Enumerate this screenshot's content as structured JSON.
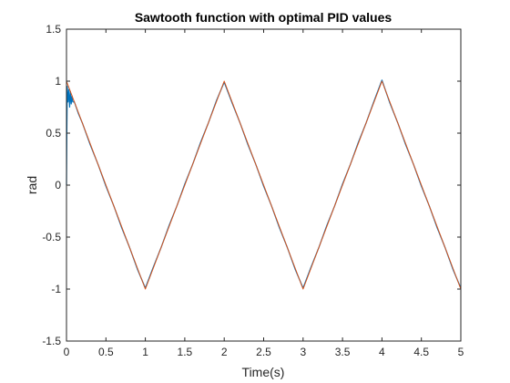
{
  "chart_data": {
    "type": "line",
    "title": "Sawtooth function with optimal PID values",
    "xlabel": "Time(s)",
    "ylabel": "rad",
    "xlim": [
      0,
      5
    ],
    "ylim": [
      -1.5,
      1.5
    ],
    "x_ticks": [
      0,
      0.5,
      1,
      1.5,
      2,
      2.5,
      3,
      3.5,
      4,
      4.5,
      5
    ],
    "x_tick_labels": [
      "0",
      "0.5",
      "1",
      "1.5",
      "2",
      "2.5",
      "3",
      "3.5",
      "4",
      "4.5",
      "5"
    ],
    "y_ticks": [
      -1.5,
      -1,
      -0.5,
      0,
      0.5,
      1,
      1.5
    ],
    "y_tick_labels": [
      "-1.5",
      "-1",
      "-0.5",
      "0",
      "0.5",
      "1",
      "1.5"
    ],
    "grid": false,
    "legend": "none",
    "series": [
      {
        "color": "#0072bd",
        "x": [
          0,
          0.005,
          0.01,
          0.02,
          0.03,
          0.04,
          0.05,
          0.06,
          0.07,
          0.08,
          0.1,
          0.15,
          0.2,
          0.3,
          0.4,
          0.5,
          0.6,
          0.7,
          0.8,
          0.9,
          1.0,
          1.1,
          1.2,
          1.3,
          1.4,
          1.5,
          1.6,
          1.7,
          1.8,
          1.9,
          2.0,
          2.1,
          2.2,
          2.3,
          2.4,
          2.5,
          2.6,
          2.7,
          2.8,
          2.9,
          3.0,
          3.1,
          3.2,
          3.3,
          3.4,
          3.5,
          3.6,
          3.7,
          3.8,
          3.9,
          4.0,
          4.1,
          4.2,
          4.3,
          4.4,
          4.5,
          4.6,
          4.7,
          4.8,
          4.9,
          5.0
        ],
        "y": [
          0,
          0.55,
          0.95,
          0.8,
          0.92,
          0.75,
          0.9,
          0.78,
          0.86,
          0.8,
          0.8,
          0.69,
          0.6,
          0.39,
          0.2,
          -0.01,
          -0.2,
          -0.41,
          -0.6,
          -0.81,
          -0.99,
          -0.79,
          -0.6,
          -0.39,
          -0.2,
          0.01,
          0.2,
          0.41,
          0.6,
          0.81,
          0.99,
          0.79,
          0.6,
          0.39,
          0.2,
          -0.01,
          -0.2,
          -0.41,
          -0.6,
          -0.81,
          -0.99,
          -0.79,
          -0.6,
          -0.39,
          -0.2,
          0.01,
          0.2,
          0.41,
          0.6,
          0.81,
          1.01,
          0.79,
          0.6,
          0.39,
          0.2,
          -0.01,
          -0.2,
          -0.41,
          -0.6,
          -0.81,
          -0.99
        ]
      },
      {
        "color": "#d95319",
        "x": [
          0,
          1,
          2,
          3,
          4,
          5
        ],
        "y": [
          1,
          -1,
          1,
          -1,
          1,
          -1
        ]
      }
    ]
  }
}
